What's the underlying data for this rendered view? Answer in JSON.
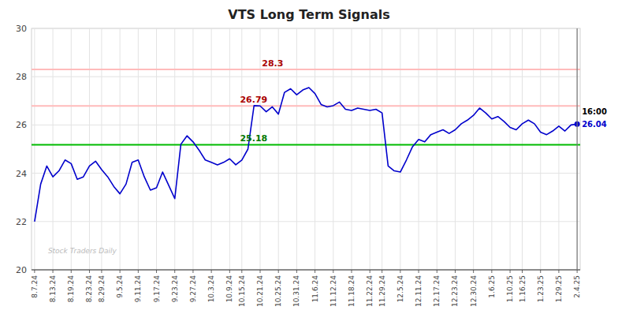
{
  "chart_data": {
    "type": "line",
    "title": "VTS Long Term Signals",
    "categories": [
      "8.7.24",
      null,
      null,
      "8.13.24",
      null,
      null,
      "8.19.24",
      null,
      null,
      "8.23.24",
      null,
      "8.29.24",
      null,
      null,
      "9.5.24",
      null,
      null,
      "9.11.24",
      null,
      null,
      "9.17.24",
      null,
      null,
      "9.23.24",
      null,
      null,
      "9.27.24",
      null,
      null,
      "10.3.24",
      null,
      null,
      "10.9.24",
      null,
      "10.15.24",
      null,
      null,
      "10.21.24",
      null,
      null,
      "10.25.24",
      null,
      null,
      "10.31.24",
      null,
      null,
      "11.6.24",
      null,
      null,
      "11.12.24",
      null,
      null,
      "11.18.24",
      null,
      null,
      "11.22.24",
      null,
      "11.29.24",
      null,
      null,
      "12.5.24",
      null,
      null,
      "12.11.24",
      null,
      null,
      "12.17.24",
      null,
      null,
      "12.23.24",
      null,
      null,
      "12.30.24",
      null,
      null,
      "1.6.25",
      null,
      null,
      "1.10.25",
      null,
      "1.16.25",
      null,
      null,
      "1.23.25",
      null,
      null,
      "1.29.25",
      null,
      null,
      "2.4.25"
    ],
    "values": [
      22.0,
      23.55,
      24.3,
      23.85,
      24.1,
      24.55,
      24.4,
      23.75,
      23.85,
      24.3,
      24.5,
      24.15,
      23.85,
      23.45,
      23.15,
      23.55,
      24.45,
      24.55,
      23.85,
      23.3,
      23.4,
      24.05,
      23.5,
      22.95,
      25.2,
      25.55,
      25.3,
      24.95,
      24.55,
      24.45,
      24.35,
      24.45,
      24.6,
      24.35,
      24.55,
      25.0,
      26.8,
      26.79,
      26.55,
      26.75,
      26.45,
      27.35,
      27.5,
      27.25,
      27.45,
      27.55,
      27.3,
      26.85,
      26.75,
      26.8,
      26.95,
      26.65,
      26.6,
      26.7,
      26.65,
      26.6,
      26.65,
      26.5,
      24.3,
      24.1,
      24.05,
      24.55,
      25.1,
      25.4,
      25.3,
      25.6,
      25.7,
      25.8,
      25.65,
      25.8,
      26.05,
      26.2,
      26.4,
      26.7,
      26.5,
      26.25,
      26.35,
      26.15,
      25.9,
      25.8,
      26.05,
      26.2,
      26.05,
      25.7,
      25.6,
      25.75,
      25.95,
      25.75,
      26.0,
      26.04
    ],
    "color": "#0000cc",
    "ylim": [
      20,
      30
    ],
    "yticks": [
      20,
      22,
      24,
      26,
      28,
      30
    ],
    "grid": true,
    "hlines": [
      {
        "value": 28.3,
        "label": "28.3",
        "color": "#ffbbbb",
        "label_color": "#aa0000"
      },
      {
        "value": 26.79,
        "label": "26.79",
        "color": "#ffbbbb",
        "label_color": "#aa0000"
      },
      {
        "value": 25.18,
        "label": "25.18",
        "color": "#00bb00",
        "label_color": "#007700"
      }
    ],
    "end_labels": {
      "time": "16:00",
      "price": {
        "value": 26.04,
        "label": "26.04"
      }
    },
    "watermark": "Stock Traders Daily"
  }
}
